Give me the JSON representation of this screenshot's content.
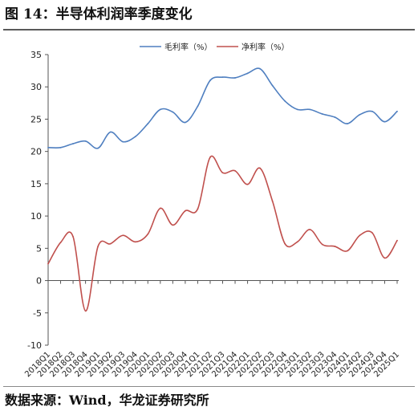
{
  "title": "图 14：半导体利润率季度变化",
  "source": "数据来源：Wind，华龙证券研究所",
  "chart_data": {
    "type": "line",
    "title": "图 14：半导体利润率季度变化",
    "xlabel": "",
    "ylabel": "",
    "ylim": [
      -10,
      35
    ],
    "yticks": [
      35,
      30,
      25,
      20,
      15,
      10,
      5,
      0,
      -5,
      -10
    ],
    "grid": false,
    "legend_position": "top",
    "categories": [
      "2018Q1",
      "2018Q2",
      "2018Q3",
      "2018Q4",
      "2019Q1",
      "2019Q2",
      "2019Q3",
      "2019Q4",
      "2020Q1",
      "2020Q2",
      "2020Q3",
      "2020Q4",
      "2021Q1",
      "2021Q2",
      "2021Q3",
      "2021Q4",
      "2022Q1",
      "2022Q2",
      "2022Q3",
      "2022Q4",
      "2023Q1",
      "2023Q2",
      "2023Q3",
      "2023Q4",
      "2024Q1",
      "2024Q2",
      "2024Q3",
      "2024Q4",
      "2025Q1"
    ],
    "series": [
      {
        "name": "毛利率（%）",
        "color": "#4f7fc0",
        "values": [
          20.6,
          20.6,
          21.2,
          21.6,
          20.5,
          23.0,
          21.5,
          22.3,
          24.3,
          26.5,
          26.1,
          24.5,
          27.0,
          31.0,
          31.5,
          31.4,
          32.1,
          32.8,
          30.2,
          27.8,
          26.5,
          26.5,
          25.8,
          25.3,
          24.3,
          25.7,
          26.2,
          24.6,
          26.2
        ]
      },
      {
        "name": "净利率（%）",
        "color": "#c0504d",
        "values": [
          2.6,
          5.9,
          6.8,
          -4.7,
          5.3,
          5.7,
          7.0,
          6.0,
          7.2,
          11.2,
          8.6,
          10.8,
          11.1,
          19.1,
          16.7,
          17.0,
          14.9,
          17.4,
          12.3,
          5.7,
          6.0,
          7.9,
          5.6,
          5.3,
          4.6,
          7.0,
          7.4,
          3.5,
          6.2
        ]
      }
    ]
  }
}
